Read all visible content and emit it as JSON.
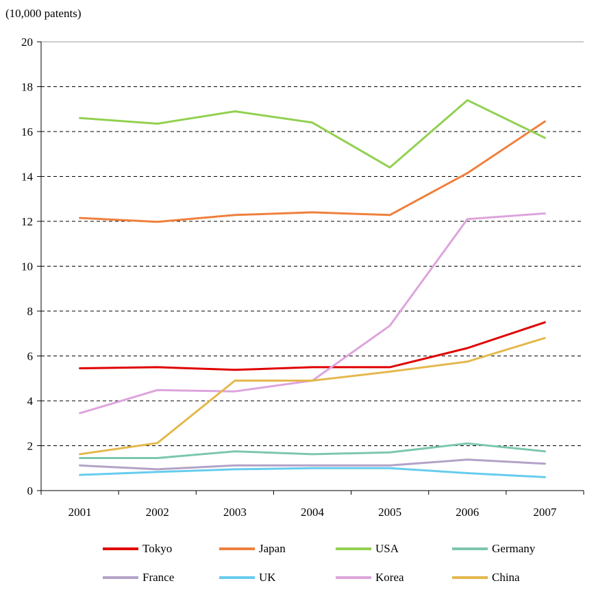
{
  "chart_data": {
    "type": "line",
    "title": "",
    "unit_label": "(10,000 patents)",
    "xlabel": "",
    "ylabel": "",
    "categories": [
      "2001",
      "2002",
      "2003",
      "2004",
      "2005",
      "2006",
      "2007"
    ],
    "ylim": [
      0,
      20
    ],
    "yticks": [
      0,
      2,
      4,
      6,
      8,
      10,
      12,
      14,
      16,
      18,
      20
    ],
    "grid": "dashed horizontal",
    "legend_position": "bottom",
    "series": [
      {
        "name": "Tokyo",
        "color": "#e00000",
        "values": [
          5.45,
          5.5,
          5.38,
          5.5,
          5.5,
          6.35,
          7.5
        ]
      },
      {
        "name": "Japan",
        "color": "#f07f3c",
        "values": [
          12.15,
          11.98,
          12.28,
          12.4,
          12.28,
          14.15,
          16.45
        ]
      },
      {
        "name": "USA",
        "color": "#92d050",
        "values": [
          16.6,
          16.35,
          16.9,
          16.4,
          14.4,
          17.4,
          15.72
        ]
      },
      {
        "name": "Germany",
        "color": "#7cc7ae",
        "values": [
          1.45,
          1.45,
          1.75,
          1.62,
          1.7,
          2.1,
          1.75
        ]
      },
      {
        "name": "France",
        "color": "#b3a2c7",
        "values": [
          1.12,
          0.95,
          1.12,
          1.12,
          1.12,
          1.38,
          1.2
        ]
      },
      {
        "name": "UK",
        "color": "#66ccee",
        "values": [
          0.7,
          0.83,
          0.95,
          1.0,
          1.0,
          0.78,
          0.6
        ]
      },
      {
        "name": "Korea",
        "color": "#dda4dc",
        "values": [
          3.45,
          4.48,
          4.42,
          4.9,
          7.35,
          12.1,
          12.35
        ]
      },
      {
        "name": "China",
        "color": "#e4b84c",
        "values": [
          1.62,
          2.12,
          4.9,
          4.9,
          5.3,
          5.75,
          6.8
        ]
      }
    ]
  }
}
